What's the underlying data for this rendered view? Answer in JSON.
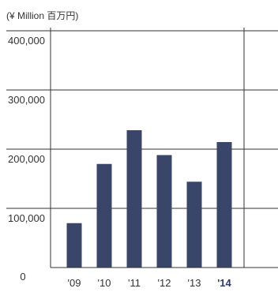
{
  "chart_data": {
    "type": "bar",
    "unit_label": "(¥ Million 百万円)",
    "categories": [
      "'09",
      "'10",
      "'11",
      "'12",
      "'13",
      "'14"
    ],
    "highlight_category": "'14",
    "values": [
      75000,
      175000,
      232000,
      190000,
      145000,
      212000
    ],
    "yticks": [
      0,
      100000,
      200000,
      300000,
      400000
    ],
    "ytick_labels": [
      "0",
      "100,000",
      "200,000",
      "300,000",
      "400,000"
    ],
    "ylim": [
      0,
      400000
    ],
    "grid": true,
    "legend": "none",
    "colors": {
      "bar": "#3a4669",
      "highlight_label": "#2b3a66",
      "axis": "#333333",
      "grid": "#333333",
      "text": "#333333"
    }
  }
}
